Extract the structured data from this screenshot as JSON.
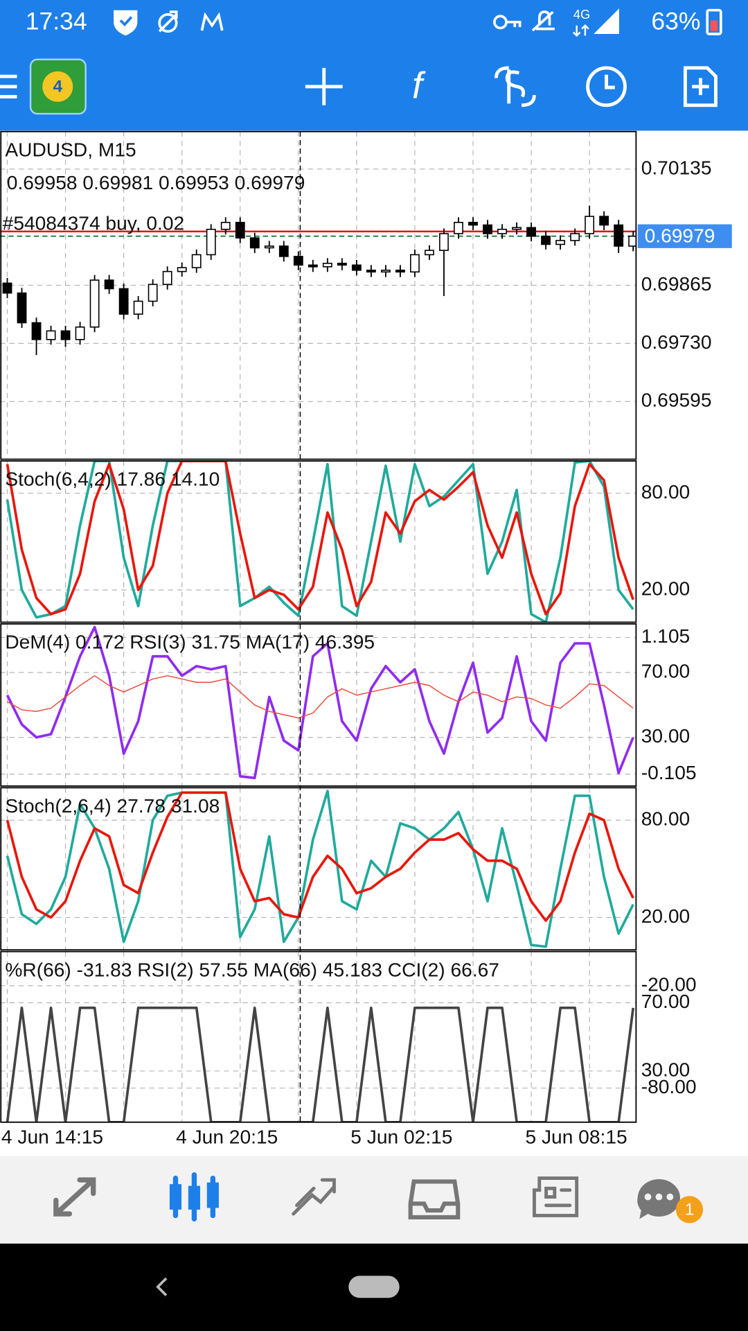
{
  "status_bar": {
    "time": "17:34",
    "network": "4G",
    "battery": "63%"
  },
  "nav_badge": 1,
  "chart_data": [
    {
      "type": "candlestick",
      "title": "AUDUSD, M15",
      "subtitle": "0.69958 0.69981 0.69953 0.69979",
      "order": {
        "label": "#54084374 buy, 0.02",
        "value": 0.6999,
        "color": "#e81010"
      },
      "last_price": 0.69979,
      "last_color": "#3d8ef0",
      "ylim": [
        0.69461,
        0.70222
      ],
      "yticks": [
        0.70135,
        0.69865,
        {
          "value": 0.6973,
          "label": "0.69730"
        },
        0.69595
      ],
      "grid": true,
      "open": [
        0.6987,
        0.69847,
        0.69778,
        0.69739,
        0.69759,
        0.69739,
        0.69768,
        0.69877,
        0.69857,
        0.69798,
        0.69828,
        0.69867,
        0.69897,
        0.69906,
        0.69936,
        0.69995,
        0.70011,
        0.69975,
        0.69952,
        0.69956,
        0.69932,
        0.69912,
        0.69908,
        0.69916,
        0.69912,
        0.699,
        0.69896,
        0.699,
        0.69896,
        0.69936,
        0.69946,
        0.69985,
        0.70011,
        0.70005,
        0.69985,
        0.69995,
        0.69999,
        0.69979,
        0.6996,
        0.69969,
        0.69985,
        0.70025,
        0.70005,
        0.69956
      ],
      "high": [
        0.69882,
        0.69859,
        0.6979,
        0.69771,
        0.69771,
        0.6978,
        0.69889,
        0.69889,
        0.69869,
        0.6984,
        0.69879,
        0.69909,
        0.69918,
        0.69948,
        0.70007,
        0.70023,
        0.70023,
        0.69987,
        0.69968,
        0.69968,
        0.69944,
        0.69924,
        0.69928,
        0.69928,
        0.69924,
        0.69912,
        0.69912,
        0.69912,
        0.69948,
        0.69958,
        0.69997,
        0.70023,
        0.70023,
        0.70017,
        0.70007,
        0.70011,
        0.70011,
        0.69991,
        0.69981,
        0.69997,
        0.7005,
        0.70037,
        0.70017,
        0.69991
      ],
      "low": [
        0.69835,
        0.69766,
        0.69703,
        0.69727,
        0.69722,
        0.69727,
        0.69756,
        0.69845,
        0.69786,
        0.69786,
        0.69816,
        0.69855,
        0.69885,
        0.69894,
        0.69924,
        0.69983,
        0.69963,
        0.6994,
        0.6994,
        0.6992,
        0.699,
        0.69896,
        0.69896,
        0.699,
        0.69888,
        0.69884,
        0.69884,
        0.69884,
        0.69884,
        0.69924,
        0.6984,
        0.69973,
        0.69993,
        0.69973,
        0.69973,
        0.69983,
        0.69967,
        0.69948,
        0.69948,
        0.69957,
        0.69973,
        0.69993,
        0.6994,
        0.69944
      ],
      "close": [
        0.69847,
        0.69778,
        0.69739,
        0.69759,
        0.69739,
        0.69768,
        0.69877,
        0.69857,
        0.69798,
        0.69828,
        0.69867,
        0.69897,
        0.69906,
        0.69936,
        0.69995,
        0.70011,
        0.69975,
        0.69952,
        0.69956,
        0.69932,
        0.69912,
        0.69908,
        0.69916,
        0.69912,
        0.699,
        0.69896,
        0.699,
        0.69896,
        0.69936,
        0.69946,
        0.69985,
        0.70011,
        0.70005,
        0.69985,
        0.69995,
        0.69999,
        0.69979,
        0.6996,
        0.69969,
        0.69985,
        0.70025,
        0.70005,
        0.69956,
        0.69979
      ]
    },
    {
      "type": "line",
      "title": "Stoch(6,4,2) 17.86 14.10",
      "ylim": [
        0,
        100
      ],
      "yticks": [
        {
          "value": 80,
          "label": "80.00"
        },
        {
          "value": 20,
          "label": "20.00"
        }
      ],
      "grid": true,
      "series": [
        {
          "color": "#20aa9c",
          "values": [
            76,
            20,
            3,
            5,
            10,
            60,
            100,
            100,
            40,
            10,
            60,
            100,
            100,
            100,
            100,
            100,
            10,
            15,
            22,
            12,
            4,
            50,
            98,
            10,
            4,
            50,
            97,
            50,
            98,
            72,
            78,
            88,
            98,
            30,
            50,
            82,
            5,
            0,
            40,
            99,
            100,
            84,
            20,
            8
          ]
        },
        {
          "color": "#e8170c",
          "values": [
            98,
            45,
            15,
            5,
            8,
            30,
            75,
            98,
            70,
            20,
            35,
            80,
            100,
            100,
            100,
            100,
            55,
            15,
            20,
            17,
            8,
            22,
            68,
            45,
            10,
            25,
            68,
            55,
            75,
            82,
            76,
            84,
            93,
            60,
            40,
            68,
            30,
            5,
            18,
            72,
            98,
            88,
            40,
            14
          ]
        }
      ]
    },
    {
      "type": "line",
      "title": "DeM(4) 0.172 RSI(3) 31.75 MA(17) 46.395",
      "ylim": [
        0,
        100
      ],
      "yticks": [
        {
          "value": 70,
          "label": "70.00"
        },
        {
          "value": 30,
          "label": "30.00"
        }
      ],
      "y2lim": [
        -0.21,
        1.225
      ],
      "y2ticks": [
        1.105,
        -0.105
      ],
      "grid": true,
      "series": [
        {
          "color": "#8f2cf0",
          "values": [
            56,
            38,
            30,
            32,
            55,
            80,
            98,
            68,
            20,
            40,
            80,
            80,
            68,
            74,
            72,
            74,
            6,
            5,
            55,
            28,
            22,
            80,
            88,
            40,
            28,
            60,
            74,
            64,
            72,
            40,
            20,
            52,
            76,
            33,
            42,
            80,
            40,
            28,
            76,
            88,
            88,
            50,
            8,
            30
          ]
        },
        {
          "color": "#f04a3a",
          "values": [
            52,
            47,
            46,
            48,
            55,
            62,
            68,
            62,
            58,
            62,
            66,
            68,
            66,
            64,
            64,
            66,
            58,
            50,
            46,
            44,
            42,
            45,
            55,
            60,
            56,
            58,
            60,
            62,
            64,
            62,
            56,
            52,
            58,
            56,
            52,
            55,
            54,
            50,
            48,
            55,
            63,
            62,
            55,
            48
          ]
        }
      ]
    },
    {
      "type": "line",
      "title": "Stoch(2,6,4) 27.78 31.08",
      "ylim": [
        0,
        100
      ],
      "yticks": [
        {
          "value": 80,
          "label": "80.00"
        },
        {
          "value": 20,
          "label": "20.00"
        }
      ],
      "grid": true,
      "series": [
        {
          "color": "#20aa9c",
          "values": [
            58,
            22,
            16,
            25,
            45,
            90,
            75,
            50,
            5,
            30,
            80,
            95,
            97,
            97,
            97,
            97,
            8,
            25,
            70,
            5,
            20,
            68,
            98,
            30,
            25,
            55,
            45,
            78,
            75,
            68,
            75,
            85,
            62,
            30,
            75,
            40,
            3,
            2,
            50,
            95,
            95,
            45,
            10,
            28
          ]
        },
        {
          "color": "#e8170c",
          "values": [
            80,
            45,
            25,
            20,
            30,
            55,
            75,
            70,
            40,
            35,
            60,
            82,
            97,
            97,
            97,
            97,
            50,
            30,
            32,
            22,
            20,
            45,
            58,
            50,
            35,
            38,
            45,
            50,
            60,
            68,
            68,
            72,
            62,
            55,
            55,
            50,
            30,
            18,
            30,
            60,
            84,
            80,
            50,
            32
          ]
        }
      ]
    },
    {
      "type": "line",
      "title": "%R(66) -31.83 RSI(2) 57.55 MA(66) 45.183 CCI(2) 66.67",
      "ylim": [
        0,
        100
      ],
      "yticks": [
        {
          "value": 70,
          "label": "70.00"
        },
        {
          "value": 30,
          "label": "30.00"
        }
      ],
      "y2lim": [
        -100,
        0
      ],
      "y2ticks": [
        {
          "value": -20,
          "label": "-20.00"
        },
        {
          "value": -80,
          "label": "-80.00"
        }
      ],
      "grid": true,
      "series": [
        {
          "color": "#444444",
          "values": [
            0,
            67,
            0,
            67,
            0,
            67,
            67,
            0,
            0,
            67,
            67,
            67,
            67,
            67,
            0,
            0,
            0,
            67,
            0,
            0,
            0,
            0,
            67,
            0,
            0,
            67,
            0,
            0,
            67,
            67,
            67,
            67,
            0,
            67,
            67,
            0,
            0,
            0,
            67,
            67,
            0,
            0,
            0,
            67
          ]
        }
      ],
      "xlim": [
        -0.5,
        43.2
      ],
      "xticks": [
        {
          "value": 0,
          "label": "4 Jun 14:15"
        },
        {
          "value": 12,
          "label": "4 Jun 20:15"
        },
        {
          "value": 24,
          "label": "5 Jun 02:15"
        },
        {
          "value": 36,
          "label": "5 Jun 08:15"
        }
      ],
      "xgrid": [
        4,
        8,
        16,
        20,
        28,
        32,
        40
      ]
    }
  ]
}
